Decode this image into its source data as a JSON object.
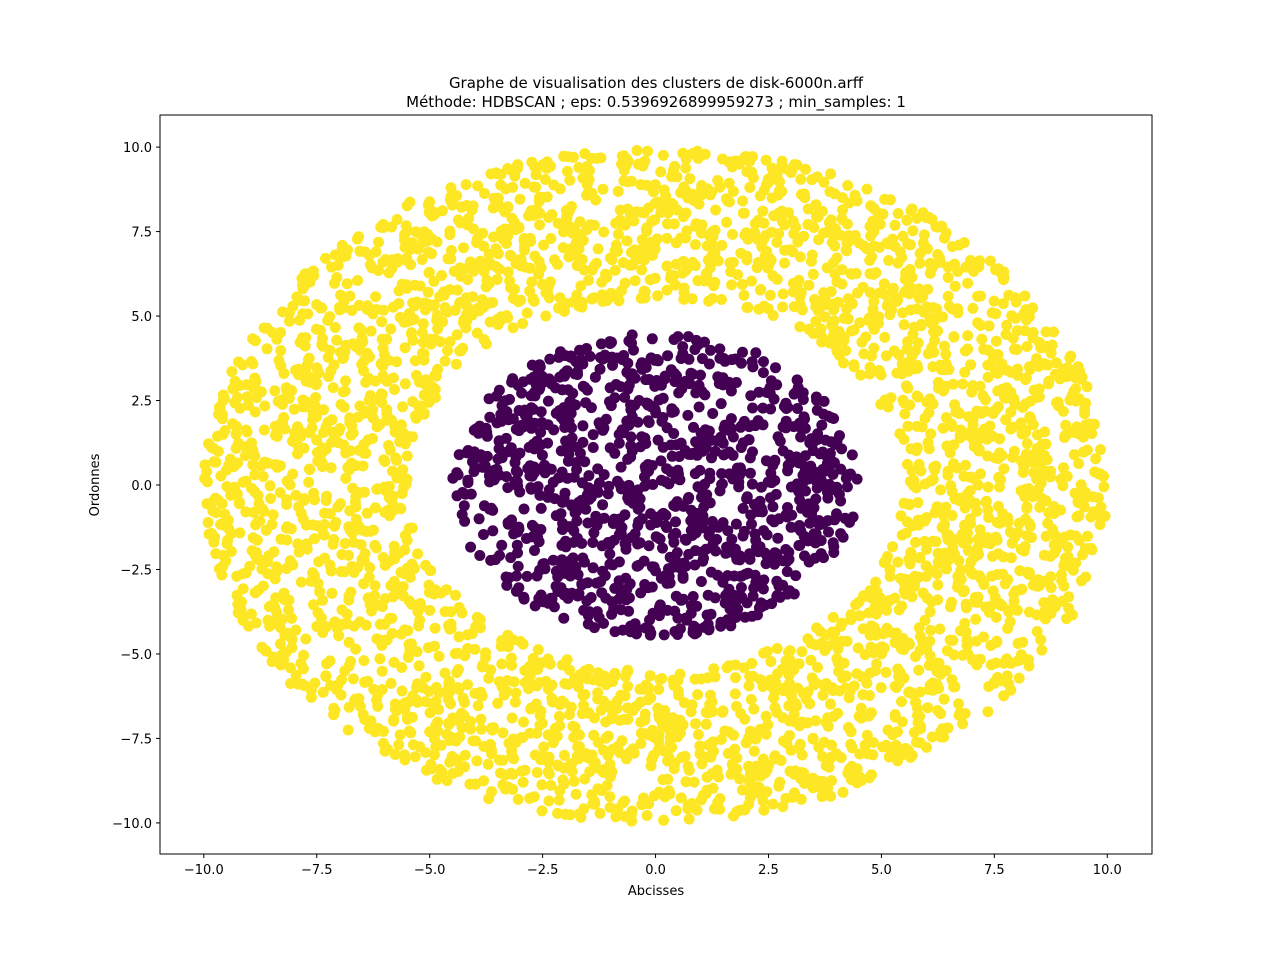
{
  "chart_data": {
    "type": "scatter",
    "title": "Graphe de visualisation des clusters de disk-6000n.arff",
    "subtitle": "Méthode: HDBSCAN ; eps: 0.5396926899959273 ; min_samples: 1",
    "xlabel": "Abcisses",
    "ylabel": "Ordonnes",
    "xlim": [
      -10.97,
      10.99
    ],
    "ylim": [
      -10.92,
      10.95
    ],
    "xticks": [
      -10.0,
      -7.5,
      -5.0,
      -2.5,
      0.0,
      2.5,
      5.0,
      7.5,
      10.0
    ],
    "xtick_labels": [
      "−10.0",
      "−7.5",
      "−5.0",
      "−2.5",
      "0.0",
      "2.5",
      "5.0",
      "7.5",
      "10.0"
    ],
    "yticks": [
      -10.0,
      -7.5,
      -5.0,
      -2.5,
      0.0,
      2.5,
      5.0,
      7.5,
      10.0
    ],
    "ytick_labels": [
      "−10.0",
      "−7.5",
      "−5.0",
      "−2.5",
      "0.0",
      "2.5",
      "5.0",
      "7.5",
      "10.0"
    ],
    "grid": false,
    "legend": "none",
    "clusters": [
      {
        "label": 0,
        "color": "#440154",
        "shape": "disk",
        "center": [
          0,
          0
        ],
        "r_min": 0,
        "r_max": 4.5,
        "n_points_approx": 1100
      },
      {
        "label": 1,
        "color": "#fde725",
        "shape": "ring",
        "center": [
          0,
          0
        ],
        "r_min": 5.5,
        "r_max": 10.0,
        "n_points_approx": 3300
      }
    ]
  }
}
